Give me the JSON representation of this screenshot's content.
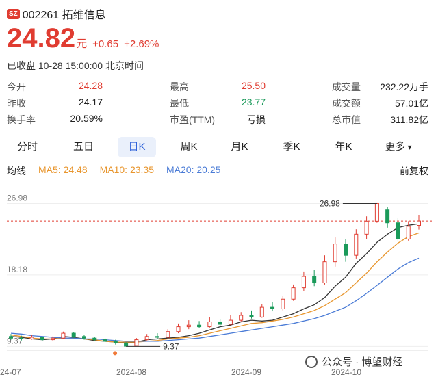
{
  "header": {
    "market_badge": "SZ",
    "code_name": "002261 拓维信息"
  },
  "quote": {
    "price": "24.82",
    "unit": "元",
    "change": "+0.65",
    "change_pct": "+2.69%",
    "status": "已收盘 10-28 15:00:00 北京时间"
  },
  "stats": [
    {
      "label": "今开",
      "value": "24.28",
      "color": "red"
    },
    {
      "label": "最高",
      "value": "25.50",
      "color": "red"
    },
    {
      "label": "成交量",
      "value": "232.22万手",
      "color": "dark"
    },
    {
      "label": "昨收",
      "value": "24.17",
      "color": "dark"
    },
    {
      "label": "最低",
      "value": "23.77",
      "color": "green"
    },
    {
      "label": "成交额",
      "value": "57.01亿",
      "color": "dark"
    },
    {
      "label": "换手率",
      "value": "20.59%",
      "color": "dark"
    },
    {
      "label": "市盈(TTM)",
      "value": "亏损",
      "color": "dark"
    },
    {
      "label": "总市值",
      "value": "311.82亿",
      "color": "dark"
    }
  ],
  "tabs": [
    "分时",
    "五日",
    "日K",
    "周K",
    "月K",
    "季K",
    "年K",
    "更多"
  ],
  "active_tab": "日K",
  "ma": {
    "label": "均线",
    "ma5": "MA5: 24.48",
    "ma10": "MA10: 23.35",
    "ma20": "MA20: 20.25",
    "adjust": "前复权"
  },
  "colors": {
    "up": "#e03c31",
    "down": "#1a9a5a",
    "ma5": "#333333",
    "ma10": "#e8962e",
    "ma20": "#4a7bd6"
  },
  "watermark": "公众号 · 博望财经",
  "chart_data": {
    "type": "candlestick",
    "y_ticks": [
      "26.98",
      "18.18",
      "9.37"
    ],
    "x_ticks": [
      "24-07",
      "2024-08",
      "2024-09",
      "2024-10"
    ],
    "ylim": [
      9.37,
      26.98
    ],
    "high_marker": "26.98",
    "low_marker": "9.37",
    "series": [
      {
        "name": "MA5",
        "values": [
          10.6,
          10.5,
          10.3,
          10.2,
          10.3,
          10.6,
          10.5,
          10.3,
          10.1,
          10.0,
          9.9,
          9.8,
          9.9,
          10.2,
          10.3,
          10.4,
          10.5,
          10.7,
          11.0,
          11.4,
          11.8,
          12.0,
          12.4,
          12.6,
          12.5,
          12.6,
          13.0,
          13.4,
          14.0,
          14.5,
          15.4,
          16.8,
          17.9,
          19.6,
          20.8,
          22.2,
          23.2,
          24.0,
          24.3,
          24.48
        ]
      },
      {
        "name": "MA10",
        "values": [
          10.8,
          10.6,
          10.4,
          10.3,
          10.3,
          10.4,
          10.4,
          10.3,
          10.2,
          10.0,
          9.9,
          9.9,
          9.9,
          10.0,
          10.1,
          10.3,
          10.4,
          10.5,
          10.7,
          11.0,
          11.3,
          11.6,
          11.9,
          12.2,
          12.3,
          12.5,
          12.7,
          13.0,
          13.4,
          13.8,
          14.4,
          15.2,
          16.0,
          17.2,
          18.4,
          19.8,
          21.0,
          22.1,
          22.9,
          23.35
        ]
      },
      {
        "name": "MA20",
        "values": [
          11.0,
          10.9,
          10.7,
          10.6,
          10.5,
          10.4,
          10.4,
          10.3,
          10.3,
          10.2,
          10.1,
          10.0,
          10.0,
          10.0,
          10.0,
          10.1,
          10.2,
          10.3,
          10.4,
          10.6,
          10.8,
          11.0,
          11.2,
          11.4,
          11.6,
          11.8,
          12.0,
          12.2,
          12.5,
          12.8,
          13.2,
          13.7,
          14.2,
          15.0,
          15.9,
          16.9,
          17.9,
          18.9,
          19.7,
          20.25
        ]
      }
    ],
    "candles": [
      [
        10.6,
        10.4,
        10.9,
        10.2
      ],
      [
        10.4,
        10.3,
        10.7,
        10.1
      ],
      [
        10.3,
        10.5,
        10.8,
        10.2
      ],
      [
        10.5,
        10.2,
        10.6,
        10.0
      ],
      [
        10.2,
        10.4,
        10.6,
        10.1
      ],
      [
        10.4,
        11.0,
        11.2,
        10.3
      ],
      [
        11.0,
        10.6,
        11.1,
        10.4
      ],
      [
        10.6,
        10.4,
        10.8,
        10.2
      ],
      [
        10.4,
        10.2,
        10.5,
        10.0
      ],
      [
        10.2,
        10.0,
        10.4,
        9.9
      ],
      [
        10.0,
        9.8,
        10.2,
        9.6
      ],
      [
        9.8,
        9.4,
        9.9,
        9.37
      ],
      [
        9.4,
        10.2,
        10.4,
        9.4
      ],
      [
        10.2,
        10.6,
        10.9,
        10.1
      ],
      [
        10.6,
        10.5,
        11.0,
        10.3
      ],
      [
        10.5,
        11.2,
        11.5,
        10.4
      ],
      [
        11.2,
        11.8,
        12.2,
        11.0
      ],
      [
        11.8,
        12.0,
        12.6,
        11.5
      ],
      [
        12.0,
        11.8,
        12.5,
        11.6
      ],
      [
        11.8,
        12.4,
        13.0,
        11.7
      ],
      [
        12.4,
        12.1,
        12.7,
        11.9
      ],
      [
        12.1,
        12.6,
        13.2,
        12.0
      ],
      [
        12.6,
        13.2,
        13.6,
        12.4
      ],
      [
        13.2,
        13.0,
        13.8,
        12.8
      ],
      [
        13.0,
        14.2,
        14.6,
        12.9
      ],
      [
        14.2,
        14.0,
        14.8,
        13.7
      ],
      [
        14.0,
        15.2,
        15.6,
        13.8
      ],
      [
        15.2,
        16.6,
        17.0,
        15.0
      ],
      [
        16.6,
        18.0,
        18.6,
        16.2
      ],
      [
        18.0,
        17.2,
        18.8,
        16.8
      ],
      [
        17.2,
        19.8,
        20.6,
        17.0
      ],
      [
        19.8,
        22.0,
        22.8,
        19.2
      ],
      [
        22.0,
        20.6,
        22.6,
        19.8
      ],
      [
        20.6,
        23.2,
        23.8,
        20.2
      ],
      [
        23.2,
        24.8,
        25.4,
        22.6
      ],
      [
        24.8,
        26.98,
        26.98,
        24.6
      ],
      [
        26.2,
        24.6,
        26.6,
        24.0
      ],
      [
        24.6,
        22.6,
        25.2,
        22.4
      ],
      [
        22.6,
        24.17,
        24.8,
        22.4
      ],
      [
        24.28,
        24.82,
        25.5,
        23.77
      ]
    ]
  }
}
